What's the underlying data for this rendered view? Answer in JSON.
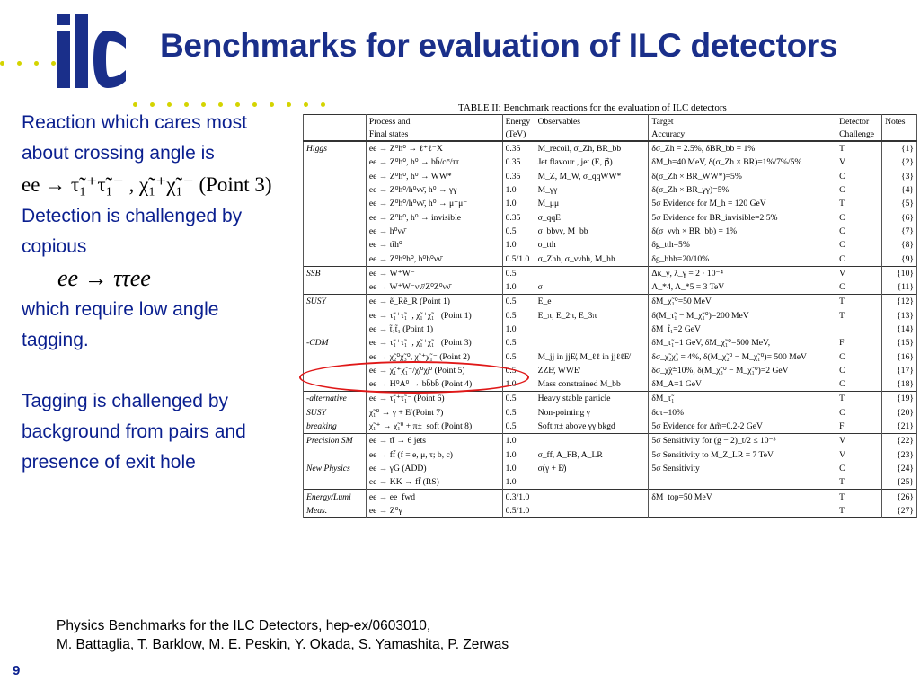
{
  "slide": {
    "title": "Benchmarks for evaluation of ILC detectors",
    "page_number": "9",
    "logo_text": "ilc"
  },
  "left": {
    "p1": "Reaction which cares most about crossing angle is",
    "formula1": "ee → τ̃₁⁺τ̃₁⁻ , χ̃₁⁺χ̃₁⁻ (Point 3)",
    "p2": "Detection is challenged by copious",
    "formula2": "ee → ττee",
    "p3": "which require low angle tagging.",
    "p4": "Tagging is challenged by background from pairs and presence of exit hole"
  },
  "table": {
    "caption": "TABLE II: Benchmark reactions for the evaluation of ILC detectors",
    "header1": [
      "",
      "Process and",
      "Energy",
      "Observables",
      "Target",
      "Detector",
      "Notes"
    ],
    "header2": [
      "",
      "Final states",
      "(TeV)",
      "",
      "Accuracy",
      "Challenge",
      ""
    ],
    "rows": [
      {
        "cat": "Higgs",
        "proc": "ee → Z⁰h⁰ → ℓ⁺ℓ⁻X",
        "en": "0.35",
        "obs": "M_recoil, σ_Zh, BR_bb",
        "acc": "δσ_Zh = 2.5%, δBR_bb = 1%",
        "ch": "T",
        "note": "{1}",
        "sec": true
      },
      {
        "cat": "",
        "proc": "ee → Z⁰h⁰, h⁰ → bb̄/cc̄/ττ",
        "en": "0.35",
        "obs": "Jet flavour , jet (E, p⃗)",
        "acc": "δM_h=40 MeV, δ(σ_Zh × BR)=1%/7%/5%",
        "ch": "V",
        "note": "{2}"
      },
      {
        "cat": "",
        "proc": "ee → Z⁰h⁰, h⁰ → WW*",
        "en": "0.35",
        "obs": "M_Z, M_W, σ_qqWW*",
        "acc": "δ(σ_Zh × BR_WW*)=5%",
        "ch": "C",
        "note": "{3}"
      },
      {
        "cat": "",
        "proc": "ee → Z⁰h⁰/h⁰νν̄, h⁰ → γγ",
        "en": "1.0",
        "obs": "M_γγ",
        "acc": "δ(σ_Zh × BR_γγ)=5%",
        "ch": "C",
        "note": "{4}"
      },
      {
        "cat": "",
        "proc": "ee → Z⁰h⁰/h⁰νν̄, h⁰ → μ⁺μ⁻",
        "en": "1.0",
        "obs": "M_μμ",
        "acc": "5σ Evidence for M_h = 120 GeV",
        "ch": "T",
        "note": "{5}"
      },
      {
        "cat": "",
        "proc": "ee → Z⁰h⁰, h⁰ → invisible",
        "en": "0.35",
        "obs": "σ_qqE",
        "acc": "5σ Evidence for BR_invisible=2.5%",
        "ch": "C",
        "note": "{6}"
      },
      {
        "cat": "",
        "proc": "ee → h⁰νν̄",
        "en": "0.5",
        "obs": "σ_bbνν, M_bb",
        "acc": "δ(σ_ννh × BR_bb) = 1%",
        "ch": "C",
        "note": "{7}"
      },
      {
        "cat": "",
        "proc": "ee → tt̄h⁰",
        "en": "1.0",
        "obs": "σ_tth",
        "acc": "δg_tth=5%",
        "ch": "C",
        "note": "{8}"
      },
      {
        "cat": "",
        "proc": "ee → Z⁰h⁰h⁰, h⁰h⁰νν̄",
        "en": "0.5/1.0",
        "obs": "σ_Zhh, σ_ννhh, M_hh",
        "acc": "δg_hhh=20/10%",
        "ch": "C",
        "note": "{9}"
      },
      {
        "cat": "SSB",
        "proc": "ee → W⁺W⁻",
        "en": "0.5",
        "obs": "",
        "acc": "Δκ_γ, λ_γ = 2 · 10⁻⁴",
        "ch": "V",
        "note": "{10}",
        "sec": true
      },
      {
        "cat": "",
        "proc": "ee → W⁺W⁻νν̄/Z⁰Z⁰νν̄",
        "en": "1.0",
        "obs": "σ",
        "acc": "Λ_*4, Λ_*5 = 3 TeV",
        "ch": "C",
        "note": "{11}"
      },
      {
        "cat": "SUSY",
        "proc": "ee → ẽ_Rẽ_R (Point 1)",
        "en": "0.5",
        "obs": "E_e",
        "acc": "δM_χ̃₁⁰=50 MeV",
        "ch": "T",
        "note": "{12}",
        "sec": true
      },
      {
        "cat": "",
        "proc": "ee → τ̃₁⁺τ̃₁⁻, χ̃₁⁺χ̃₁⁻ (Point 1)",
        "en": "0.5",
        "obs": "E_π, E_2π, E_3π",
        "acc": "δ(M_τ̃₁ − M_χ̃₁⁰)=200 MeV",
        "ch": "T",
        "note": "{13}"
      },
      {
        "cat": "",
        "proc": "ee → t̃₁t̃₁ (Point 1)",
        "en": "1.0",
        "obs": "",
        "acc": "δM_t̃₁=2 GeV",
        "ch": "",
        "note": "{14}"
      },
      {
        "cat": "-CDM",
        "proc": "ee → τ̃₁⁺τ̃₁⁻, χ̃₁⁺χ̃₁⁻ (Point 3)",
        "en": "0.5",
        "obs": "",
        "acc": "δM_τ̃₁=1 GeV, δM_χ̃₁⁰=500 MeV,",
        "ch": "F",
        "note": "{15}"
      },
      {
        "cat": "",
        "proc": "ee → χ̃₂⁰χ̃₃⁰, χ̃₁⁺χ̃₁⁻ (Point 2)",
        "en": "0.5",
        "obs": "M_jj in jjE̸, M_ℓℓ in jjℓℓE̸",
        "acc": "δσ_χ̃₂χ̃₃ = 4%, δ(M_χ̃₂⁰ − M_χ̃₁⁰)= 500 MeV",
        "ch": "C",
        "note": "{16}"
      },
      {
        "cat": "",
        "proc": "ee → χ̃₁⁺χ̃₁⁻/χ̃ᵢ⁰χ̃ⱼ⁰ (Point 5)",
        "en": "0.5",
        "obs": "ZZE̸, WWE̸",
        "acc": "δσ_χ̃χ̃=10%, δ(M_χ̃₃⁰ − M_χ̃₁⁰)=2 GeV",
        "ch": "C",
        "note": "{17}"
      },
      {
        "cat": "",
        "proc": "ee → H⁰A⁰ → bb̄bb̄ (Point 4)",
        "en": "1.0",
        "obs": "Mass constrained M_bb",
        "acc": "δM_A=1 GeV",
        "ch": "C",
        "note": "{18}"
      },
      {
        "cat": "-alternative",
        "proc": "ee → τ̃₁⁺τ̃₁⁻ (Point 6)",
        "en": "0.5",
        "obs": "Heavy stable particle",
        "acc": "δM_τ̃₁",
        "ch": "T",
        "note": "{19}",
        "sec": true
      },
      {
        "cat": "SUSY",
        "proc": "χ̃₁⁰ → γ + E̸ (Point 7)",
        "en": "0.5",
        "obs": "Non-pointing γ",
        "acc": "δcτ=10%",
        "ch": "C",
        "note": "{20}"
      },
      {
        "cat": "breaking",
        "proc": "χ̃₁⁺ → χ̃₁⁰ + π±_soft (Point 8)",
        "en": "0.5",
        "obs": "Soft π± above γγ bkgd",
        "acc": "5σ Evidence for Δm̃=0.2-2 GeV",
        "ch": "F",
        "note": "{21}"
      },
      {
        "cat": "Precision SM",
        "proc": "ee → tt̄ → 6 jets",
        "en": "1.0",
        "obs": "",
        "acc": "5σ Sensitivity for (g − 2)_t/2 ≤ 10⁻³",
        "ch": "V",
        "note": "{22}",
        "sec": true
      },
      {
        "cat": "",
        "proc": "ee → ff̄ (f = e, μ, τ; b, c)",
        "en": "1.0",
        "obs": "σ_ff, A_FB, A_LR",
        "acc": "5σ Sensitivity to M_Z_LR = 7 TeV",
        "ch": "V",
        "note": "{23}"
      },
      {
        "cat": "New Physics",
        "proc": "ee → γG (ADD)",
        "en": "1.0",
        "obs": "σ(γ + E̸)",
        "acc": "5σ Sensitivity",
        "ch": "C",
        "note": "{24}"
      },
      {
        "cat": "",
        "proc": "ee → KK → ff̄ (RS)",
        "en": "1.0",
        "obs": "",
        "acc": "",
        "ch": "T",
        "note": "{25}"
      },
      {
        "cat": "Energy/Lumi",
        "proc": "ee → ee_fwd",
        "en": "0.3/1.0",
        "obs": "",
        "acc": "δM_top=50 MeV",
        "ch": "T",
        "note": "{26}",
        "sec": true
      },
      {
        "cat": "Meas.",
        "proc": "ee → Z⁰γ",
        "en": "0.5/1.0",
        "obs": "",
        "acc": "",
        "ch": "T",
        "note": "{27}"
      }
    ]
  },
  "reference": {
    "line1": "Physics Benchmarks for the ILC Detectors, hep-ex/0603010,",
    "line2": "M. Battaglia, T. Barklow, M. E. Peskin, Y. Okada, S. Yamashita, P. Zerwas"
  },
  "colors": {
    "title": "#1a2f8a",
    "text": "#0a1f8f",
    "highlight": "#e01818",
    "dots": "#d4d400"
  }
}
